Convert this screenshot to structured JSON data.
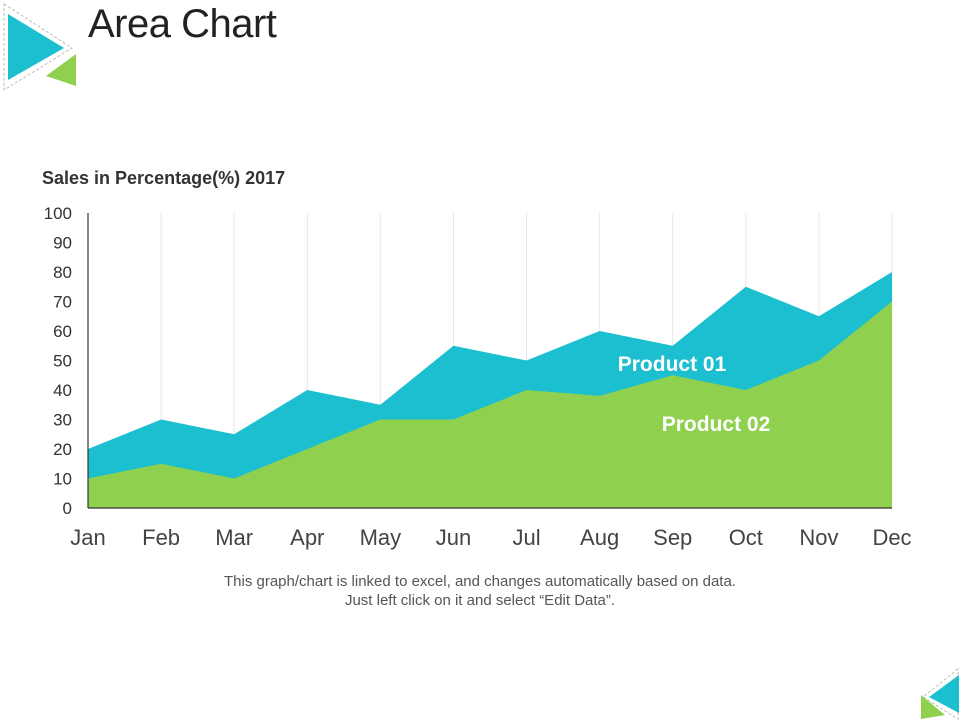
{
  "header": {
    "title": "Area Chart"
  },
  "footnote": {
    "line1": "This graph/chart is linked to excel, and changes automatically based on data.",
    "line2": "Just left click on it and select “Edit Data”."
  },
  "colors": {
    "product01": "#1bbfcf",
    "product02": "#8fd14f",
    "axis": "#333333",
    "grid": "#e8e8e8"
  },
  "chart_data": {
    "type": "area",
    "title": "Sales in Percentage(%) 2017",
    "xlabel": "",
    "ylabel": "",
    "categories": [
      "Jan",
      "Feb",
      "Mar",
      "Apr",
      "May",
      "Jun",
      "Jul",
      "Aug",
      "Sep",
      "Oct",
      "Nov",
      "Dec"
    ],
    "series": [
      {
        "name": "Product 01",
        "values": [
          20,
          30,
          25,
          40,
          35,
          55,
          50,
          60,
          55,
          75,
          65,
          80
        ]
      },
      {
        "name": "Product 02",
        "values": [
          10,
          15,
          10,
          20,
          30,
          30,
          40,
          38,
          45,
          40,
          50,
          70
        ]
      }
    ],
    "ylim": [
      0,
      100
    ],
    "yticks": [
      0,
      10,
      20,
      30,
      40,
      50,
      60,
      70,
      80,
      90,
      100
    ],
    "grid": "vertical"
  }
}
